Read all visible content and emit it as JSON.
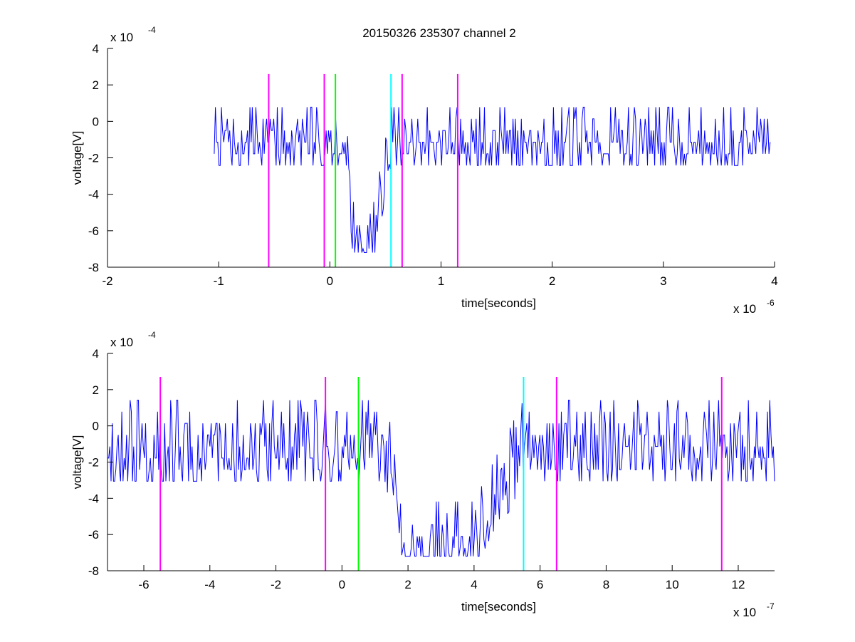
{
  "figure": {
    "title": "20150326 235307 channel 2",
    "background": "#ffffff"
  },
  "chart_data": [
    {
      "type": "line",
      "xlabel": "time[seconds]",
      "ylabel": "voltage[V]",
      "x_multiplier_label": "x 10",
      "x_multiplier_exp": "-6",
      "y_multiplier_label": "x 10",
      "y_multiplier_exp": "-4",
      "xlim": [
        -2,
        4
      ],
      "ylim": [
        -8,
        4
      ],
      "x_ticks": [
        -2,
        -1,
        0,
        1,
        2,
        3,
        4
      ],
      "y_ticks": [
        -8,
        -6,
        -4,
        -2,
        0,
        2,
        4
      ],
      "grid": false,
      "signal": {
        "color": "#0000ff",
        "x_start": -1.04,
        "x_end": 3.96,
        "noise_levels": [
          -2.4,
          -1.6,
          -0.8,
          0,
          0.8,
          1.6
        ],
        "dip": {
          "start": 0.15,
          "bottom_start": 0.2,
          "bottom_end": 0.4,
          "end": 0.55,
          "min": -7.2,
          "depth": -5.2
        },
        "seed": 7
      },
      "markers": [
        {
          "x": -0.55,
          "color": "#ff00ff"
        },
        {
          "x": -0.05,
          "color": "#ff00ff"
        },
        {
          "x": 0.05,
          "color": "#00ff00"
        },
        {
          "x": 0.55,
          "color": "#00ffff"
        },
        {
          "x": 0.65,
          "color": "#ff00ff"
        },
        {
          "x": 1.15,
          "color": "#ff00ff"
        }
      ],
      "marker_y_range": [
        -8,
        2.6
      ]
    },
    {
      "type": "line",
      "xlabel": "time[seconds]",
      "ylabel": "voltage[V]",
      "x_multiplier_label": "x 10",
      "x_multiplier_exp": "-7",
      "y_multiplier_label": "x 10",
      "y_multiplier_exp": "-4",
      "xlim": [
        -7.1,
        13.1
      ],
      "ylim": [
        -8,
        4
      ],
      "x_ticks": [
        -6,
        -4,
        -2,
        0,
        2,
        4,
        6,
        8,
        10,
        12
      ],
      "y_ticks": [
        -8,
        -6,
        -4,
        -2,
        0,
        2,
        4
      ],
      "grid": false,
      "signal": {
        "color": "#0000ff",
        "x_start": -7.1,
        "x_end": 13.1,
        "noise_levels": [
          -3.2,
          -2.4,
          -1.6,
          -0.8,
          0,
          0.8,
          1.6,
          2.4
        ],
        "dip": {
          "start": 1.3,
          "bottom_start": 2.0,
          "bottom_end": 4.0,
          "end": 5.5,
          "min": -7.2,
          "depth": -5.6
        },
        "seed": 11
      },
      "markers": [
        {
          "x": -5.5,
          "color": "#ff00ff"
        },
        {
          "x": -0.5,
          "color": "#ff00ff"
        },
        {
          "x": 0.5,
          "color": "#00ff00"
        },
        {
          "x": 5.5,
          "color": "#00ffff"
        },
        {
          "x": 6.5,
          "color": "#ff00ff"
        },
        {
          "x": 11.5,
          "color": "#ff00ff"
        }
      ],
      "marker_y_range": [
        -8,
        2.7
      ]
    }
  ]
}
